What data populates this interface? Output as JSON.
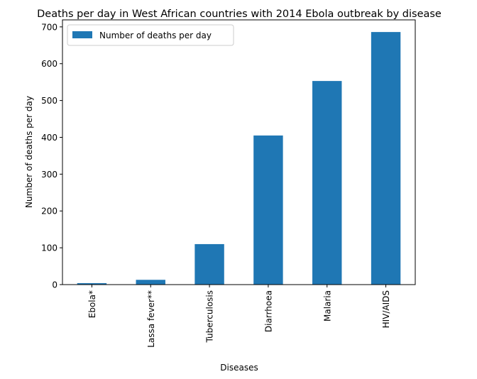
{
  "chart_data": {
    "type": "bar",
    "title": "Deaths per day in West African countries with 2014 Ebola outbreak by disease",
    "xlabel": "Diseases",
    "ylabel": "Number of deaths per day",
    "categories": [
      "Ebola*",
      "Lassa fever**",
      "Tuberculosis",
      "Diarrhoea",
      "Malaria",
      "HIV/AIDS"
    ],
    "series": [
      {
        "name": "Number of deaths per day",
        "values": [
          4,
          13,
          110,
          405,
          553,
          686
        ],
        "color": "#1f77b4"
      }
    ],
    "ylim": [
      0,
      719
    ],
    "yticks": [
      0,
      100,
      200,
      300,
      400,
      500,
      600,
      700
    ],
    "grid": false,
    "legend_position": "top-left"
  }
}
